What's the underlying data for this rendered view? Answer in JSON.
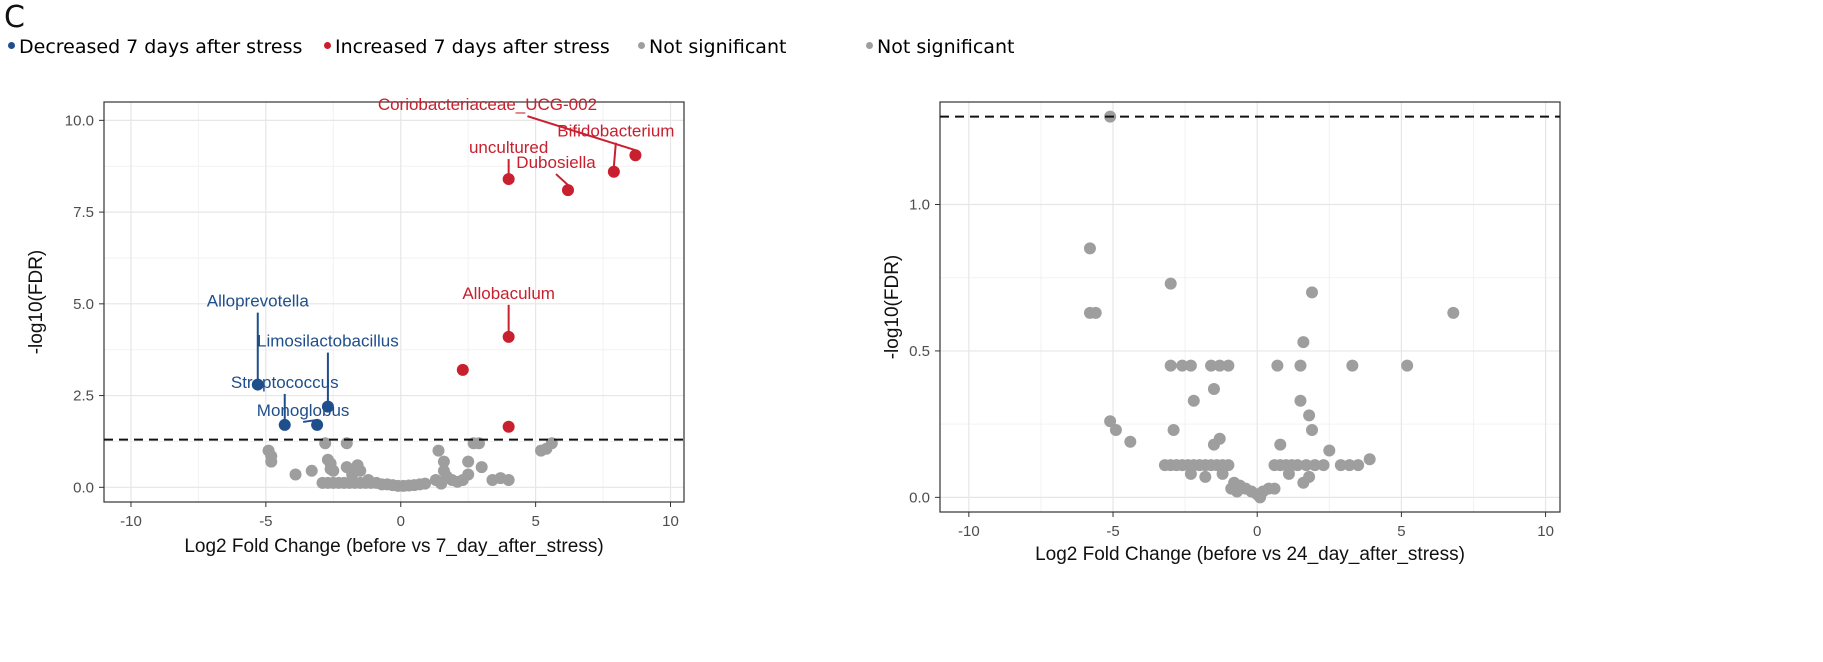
{
  "panel_label": "C",
  "legend": [
    {
      "label": "Decreased 7 days after stress",
      "color": "#1f4e8c"
    },
    {
      "label": "Increased 7 days after stress",
      "color": "#c8202e"
    },
    {
      "label": "Not significant",
      "color": "#9e9e9e"
    },
    {
      "label": "Not significant",
      "color": "#9e9e9e"
    }
  ],
  "chart_data": [
    {
      "type": "scatter",
      "title": "",
      "xlabel": "Log2 Fold Change (before vs 7_day_after_stress)",
      "ylabel": "-log10(FDR)",
      "xlim": [
        -11,
        10.5
      ],
      "ylim": [
        -0.4,
        10.5
      ],
      "xticks": [
        -10,
        -5,
        0,
        5,
        10
      ],
      "xtick_labels": [
        "-10",
        "-5",
        "0",
        "5",
        "10"
      ],
      "yticks": [
        0.0,
        2.5,
        5.0,
        7.5,
        10.0
      ],
      "ytick_labels": [
        "0.0",
        "2.5",
        "5.0",
        "7.5",
        "10.0"
      ],
      "threshold": 1.3,
      "grid": true,
      "series": [
        {
          "name": "Decreased 7 days after stress",
          "color": "#1f4e8c",
          "points": [
            {
              "x": -5.3,
              "y": 2.8,
              "label": "Alloprevotella"
            },
            {
              "x": -4.3,
              "y": 1.7,
              "label": "Streptococcus"
            },
            {
              "x": -3.1,
              "y": 1.7,
              "label": "Monoglobus"
            },
            {
              "x": -2.7,
              "y": 2.2,
              "label": "Limosilactobacillus"
            }
          ]
        },
        {
          "name": "Increased 7 days after stress",
          "color": "#c8202e",
          "points": [
            {
              "x": 8.7,
              "y": 9.05,
              "label": "Coriobacteriaceae_UCG-002"
            },
            {
              "x": 7.9,
              "y": 8.6,
              "label": "Bifidobacterium"
            },
            {
              "x": 6.2,
              "y": 8.1,
              "label": "Dubosiella"
            },
            {
              "x": 4.0,
              "y": 8.4,
              "label": "uncultured"
            },
            {
              "x": 4.0,
              "y": 4.1,
              "label": "Allobaculum"
            },
            {
              "x": 2.3,
              "y": 3.2,
              "label": ""
            },
            {
              "x": 4.0,
              "y": 1.65,
              "label": ""
            }
          ]
        },
        {
          "name": "Not significant",
          "color": "#9e9e9e",
          "points": [
            {
              "x": -4.9,
              "y": 1.0
            },
            {
              "x": -4.8,
              "y": 0.85
            },
            {
              "x": -4.8,
              "y": 0.7
            },
            {
              "x": -3.9,
              "y": 0.35
            },
            {
              "x": -3.3,
              "y": 0.45
            },
            {
              "x": -2.8,
              "y": 1.2
            },
            {
              "x": -2.7,
              "y": 0.75
            },
            {
              "x": -2.6,
              "y": 0.65
            },
            {
              "x": -2.6,
              "y": 0.5
            },
            {
              "x": -2.5,
              "y": 0.45
            },
            {
              "x": -2.0,
              "y": 0.55
            },
            {
              "x": -1.8,
              "y": 0.35
            },
            {
              "x": -1.6,
              "y": 0.6
            },
            {
              "x": -1.5,
              "y": 0.45
            },
            {
              "x": -2.0,
              "y": 1.2
            },
            {
              "x": -1.2,
              "y": 0.2
            },
            {
              "x": -2.9,
              "y": 0.12
            },
            {
              "x": -2.7,
              "y": 0.12
            },
            {
              "x": -2.5,
              "y": 0.12
            },
            {
              "x": -2.3,
              "y": 0.12
            },
            {
              "x": -2.1,
              "y": 0.12
            },
            {
              "x": -1.9,
              "y": 0.12
            },
            {
              "x": -1.7,
              "y": 0.12
            },
            {
              "x": -1.5,
              "y": 0.12
            },
            {
              "x": -1.3,
              "y": 0.12
            },
            {
              "x": -1.1,
              "y": 0.12
            },
            {
              "x": -0.9,
              "y": 0.12
            },
            {
              "x": -0.7,
              "y": 0.08
            },
            {
              "x": -0.5,
              "y": 0.08
            },
            {
              "x": -0.3,
              "y": 0.06
            },
            {
              "x": -0.1,
              "y": 0.04
            },
            {
              "x": 0.1,
              "y": 0.04
            },
            {
              "x": 0.3,
              "y": 0.05
            },
            {
              "x": 0.5,
              "y": 0.06
            },
            {
              "x": 0.7,
              "y": 0.08
            },
            {
              "x": 0.9,
              "y": 0.1
            },
            {
              "x": 1.3,
              "y": 0.2
            },
            {
              "x": 1.5,
              "y": 0.1
            },
            {
              "x": 1.6,
              "y": 0.45
            },
            {
              "x": 1.7,
              "y": 0.3
            },
            {
              "x": 1.9,
              "y": 0.2
            },
            {
              "x": 2.1,
              "y": 0.15
            },
            {
              "x": 1.4,
              "y": 1.0
            },
            {
              "x": 1.6,
              "y": 0.7
            },
            {
              "x": 2.3,
              "y": 0.2
            },
            {
              "x": 2.5,
              "y": 0.35
            },
            {
              "x": 2.5,
              "y": 0.7
            },
            {
              "x": 2.7,
              "y": 1.2
            },
            {
              "x": 2.9,
              "y": 1.2
            },
            {
              "x": 3.0,
              "y": 0.55
            },
            {
              "x": 3.4,
              "y": 0.2
            },
            {
              "x": 3.7,
              "y": 0.25
            },
            {
              "x": 4.0,
              "y": 0.2
            },
            {
              "x": 5.2,
              "y": 1.0
            },
            {
              "x": 5.4,
              "y": 1.05
            },
            {
              "x": 5.6,
              "y": 1.2
            }
          ]
        }
      ]
    },
    {
      "type": "scatter",
      "title": "",
      "xlabel": "Log2 Fold Change (before vs 24_day_after_stress)",
      "ylabel": "-log10(FDR)",
      "xlim": [
        -11,
        10.5
      ],
      "ylim": [
        -0.05,
        1.35
      ],
      "xticks": [
        -10,
        -5,
        0,
        5,
        10
      ],
      "xtick_labels": [
        "-10",
        "-5",
        "0",
        "5",
        "10"
      ],
      "yticks": [
        0.0,
        0.5,
        1.0
      ],
      "ytick_labels": [
        "0.0",
        "0.5",
        "1.0"
      ],
      "threshold": 1.3,
      "grid": true,
      "series": [
        {
          "name": "Not significant",
          "color": "#9e9e9e",
          "points": [
            {
              "x": -5.1,
              "y": 1.3
            },
            {
              "x": -5.8,
              "y": 0.85
            },
            {
              "x": -5.8,
              "y": 0.63
            },
            {
              "x": -5.6,
              "y": 0.63
            },
            {
              "x": -3.0,
              "y": 0.73
            },
            {
              "x": 1.9,
              "y": 0.7
            },
            {
              "x": 6.8,
              "y": 0.63
            },
            {
              "x": 1.6,
              "y": 0.53
            },
            {
              "x": 5.2,
              "y": 0.45
            },
            {
              "x": 3.3,
              "y": 0.45
            },
            {
              "x": -3.0,
              "y": 0.45
            },
            {
              "x": -2.6,
              "y": 0.45
            },
            {
              "x": -2.3,
              "y": 0.45
            },
            {
              "x": -1.6,
              "y": 0.45
            },
            {
              "x": -1.3,
              "y": 0.45
            },
            {
              "x": -1.0,
              "y": 0.45
            },
            {
              "x": 0.7,
              "y": 0.45
            },
            {
              "x": 1.5,
              "y": 0.45
            },
            {
              "x": -1.5,
              "y": 0.37
            },
            {
              "x": -2.2,
              "y": 0.33
            },
            {
              "x": 1.5,
              "y": 0.33
            },
            {
              "x": 1.8,
              "y": 0.28
            },
            {
              "x": -5.1,
              "y": 0.26
            },
            {
              "x": -4.9,
              "y": 0.23
            },
            {
              "x": -2.9,
              "y": 0.23
            },
            {
              "x": -1.3,
              "y": 0.2
            },
            {
              "x": 1.9,
              "y": 0.23
            },
            {
              "x": -4.4,
              "y": 0.19
            },
            {
              "x": -1.5,
              "y": 0.18
            },
            {
              "x": 0.8,
              "y": 0.18
            },
            {
              "x": 2.5,
              "y": 0.16
            },
            {
              "x": 3.9,
              "y": 0.13
            },
            {
              "x": -3.2,
              "y": 0.11
            },
            {
              "x": -3.0,
              "y": 0.11
            },
            {
              "x": -2.8,
              "y": 0.11
            },
            {
              "x": -2.6,
              "y": 0.11
            },
            {
              "x": -2.4,
              "y": 0.11
            },
            {
              "x": -2.2,
              "y": 0.11
            },
            {
              "x": -2.0,
              "y": 0.11
            },
            {
              "x": -1.8,
              "y": 0.11
            },
            {
              "x": -1.6,
              "y": 0.11
            },
            {
              "x": -1.4,
              "y": 0.11
            },
            {
              "x": -1.2,
              "y": 0.11
            },
            {
              "x": -1.0,
              "y": 0.11
            },
            {
              "x": 0.6,
              "y": 0.11
            },
            {
              "x": 0.8,
              "y": 0.11
            },
            {
              "x": 1.0,
              "y": 0.11
            },
            {
              "x": 1.2,
              "y": 0.11
            },
            {
              "x": 1.4,
              "y": 0.11
            },
            {
              "x": 1.7,
              "y": 0.11
            },
            {
              "x": 2.0,
              "y": 0.11
            },
            {
              "x": 2.3,
              "y": 0.11
            },
            {
              "x": 2.9,
              "y": 0.11
            },
            {
              "x": 3.2,
              "y": 0.11
            },
            {
              "x": 3.5,
              "y": 0.11
            },
            {
              "x": -2.3,
              "y": 0.08
            },
            {
              "x": -1.8,
              "y": 0.07
            },
            {
              "x": -1.2,
              "y": 0.08
            },
            {
              "x": 1.1,
              "y": 0.08
            },
            {
              "x": 1.8,
              "y": 0.07
            },
            {
              "x": 1.6,
              "y": 0.05
            },
            {
              "x": -0.8,
              "y": 0.05
            },
            {
              "x": -0.6,
              "y": 0.04
            },
            {
              "x": -0.4,
              "y": 0.03
            },
            {
              "x": -0.2,
              "y": 0.02
            },
            {
              "x": 0.0,
              "y": 0.01
            },
            {
              "x": 0.2,
              "y": 0.02
            },
            {
              "x": 0.4,
              "y": 0.03
            },
            {
              "x": 0.6,
              "y": 0.03
            },
            {
              "x": -0.9,
              "y": 0.03
            },
            {
              "x": -0.7,
              "y": 0.02
            },
            {
              "x": 0.1,
              "y": 0.0
            }
          ]
        }
      ]
    }
  ]
}
